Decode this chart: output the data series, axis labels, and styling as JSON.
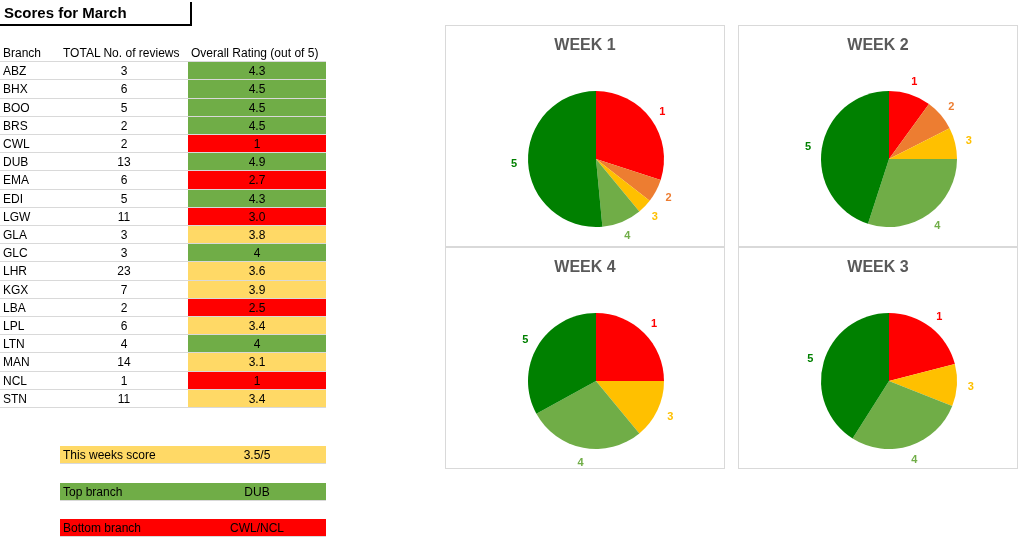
{
  "chart_data": [
    {
      "type": "other",
      "title": "Scores for March",
      "xlabel": "Branch",
      "data_labels": true,
      "categories": [
        "ABZ",
        "BHX",
        "BOO",
        "BRS",
        "CWL",
        "DUB",
        "EMA",
        "EDI",
        "LGW",
        "GLA",
        "GLC",
        "LHR",
        "KGX",
        "LBA",
        "LPL",
        "LTN",
        "MAN",
        "NCL",
        "STN"
      ],
      "series": [
        {
          "name": "TOTAL No. of reviews",
          "values": [
            3,
            6,
            5,
            2,
            2,
            13,
            6,
            5,
            11,
            3,
            3,
            23,
            7,
            2,
            6,
            4,
            14,
            1,
            11
          ]
        },
        {
          "name": "Overall Rating (out of 5)",
          "values": [
            4.3,
            4.5,
            4.5,
            4.5,
            1,
            4.9,
            2.7,
            4.3,
            3.0,
            3.8,
            4,
            3.6,
            3.9,
            2.5,
            3.4,
            4,
            3.1,
            1,
            3.4
          ],
          "value_labels": [
            "4.3",
            "4.5",
            "4.5",
            "4.5",
            "1",
            "4.9",
            "2.7",
            "4.3",
            "3.0",
            "3.8",
            "4",
            "3.6",
            "3.9",
            "2.5",
            "3.4",
            "4",
            "3.1",
            "1",
            "3.4"
          ],
          "colors": [
            "#70ad47",
            "#70ad47",
            "#70ad47",
            "#70ad47",
            "#ff0000",
            "#70ad47",
            "#ff0000",
            "#70ad47",
            "#ff0000",
            "#ffd966",
            "#70ad47",
            "#ffd966",
            "#ffd966",
            "#ff0000",
            "#ffd966",
            "#70ad47",
            "#ffd966",
            "#ff0000",
            "#ffd966"
          ]
        }
      ],
      "annotations": [
        "This weeks score",
        "3.5/5",
        "Top branch",
        "DUB",
        "Bottom branch",
        "CWL/NCL"
      ]
    },
    {
      "type": "pie",
      "title": "WEEK 1",
      "categories": [
        "1",
        "2",
        "3",
        "4",
        "5"
      ],
      "values": [
        30,
        5.5,
        3.5,
        9.5,
        51.5
      ],
      "colors": [
        "#ff0000",
        "#ed7d31",
        "#ffc000",
        "#70ad47",
        "#008000"
      ]
    },
    {
      "type": "pie",
      "title": "WEEK 2",
      "categories": [
        "1",
        "2",
        "3",
        "4",
        "5"
      ],
      "values": [
        10,
        7.5,
        7.5,
        30,
        45
      ],
      "colors": [
        "#ff0000",
        "#ed7d31",
        "#ffc000",
        "#70ad47",
        "#008000"
      ]
    },
    {
      "type": "pie",
      "title": "WEEK 4",
      "categories": [
        "1",
        "3",
        "4",
        "5"
      ],
      "values": [
        25,
        14,
        28,
        33
      ],
      "colors": [
        "#ff0000",
        "#ffc000",
        "#70ad47",
        "#008000"
      ]
    },
    {
      "type": "pie",
      "title": "WEEK 3",
      "categories": [
        "1",
        "3",
        "4",
        "5"
      ],
      "values": [
        21,
        10,
        28,
        41
      ],
      "colors": [
        "#ff0000",
        "#ffc000",
        "#70ad47",
        "#008000"
      ]
    }
  ]
}
